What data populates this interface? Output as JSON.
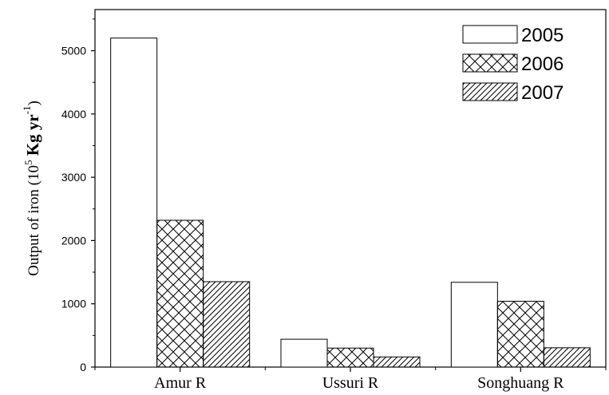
{
  "chart_data": {
    "type": "bar",
    "categories": [
      "Amur R",
      "Ussuri R",
      "Songhuang R"
    ],
    "series": [
      {
        "name": "2005",
        "pattern": "none",
        "values": [
          5200,
          440,
          1340
        ]
      },
      {
        "name": "2006",
        "pattern": "crosshatch",
        "values": [
          2320,
          300,
          1040
        ]
      },
      {
        "name": "2007",
        "pattern": "diagonal",
        "values": [
          1350,
          160,
          305
        ]
      }
    ],
    "title": "",
    "xlabel": "",
    "ylabel": {
      "prefix": "Output of iron (10",
      "exp1": "5",
      "mid": " Kg yr",
      "exp2": "-1",
      "suffix": ")"
    },
    "ylim": [
      0,
      5650
    ],
    "yticks": [
      0,
      1000,
      2000,
      3000,
      4000,
      5000
    ],
    "legend_position": "top-right",
    "colors": {
      "bar_fill": "#ffffff",
      "stroke": "#000000"
    }
  }
}
